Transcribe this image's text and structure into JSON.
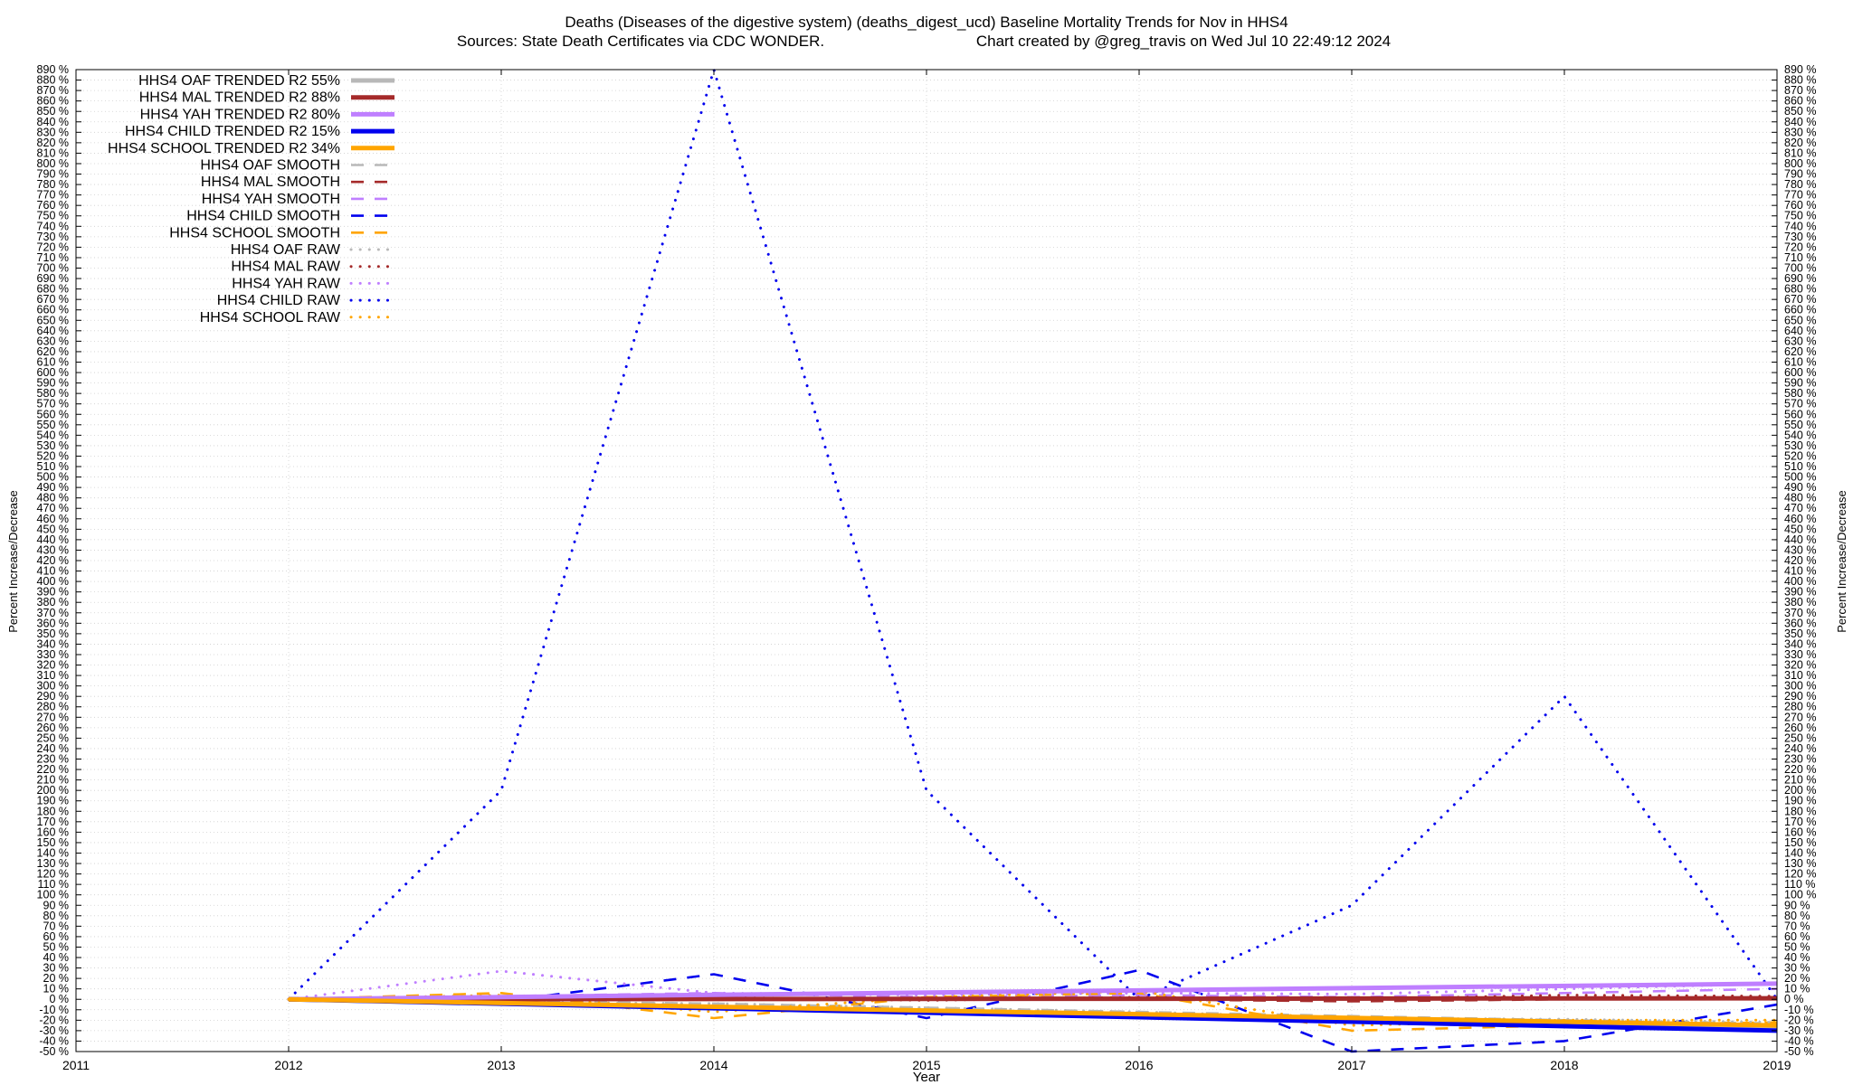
{
  "chart_data": {
    "type": "line",
    "title_line1": "Deaths (Diseases of the digestive system) (deaths_digest_ucd)  Baseline Mortality Trends for Nov in HHS4",
    "title_line2_left": "Sources: State Death Certificates via CDC WONDER.",
    "title_line2_right": "Chart created by @greg_travis on Wed Jul 10 22:49:12 2024",
    "xlabel": "Year",
    "ylabel": "Percent Increase/Decrease",
    "xlim": [
      2011,
      2019
    ],
    "ylim": [
      -50,
      890
    ],
    "x_ticks": [
      2011,
      2012,
      2013,
      2014,
      2015,
      2016,
      2017,
      2018,
      2019
    ],
    "y_tick_step": 10,
    "y_tick_suffix": " %",
    "grid": true,
    "legend_position": "top-left",
    "colors": {
      "oaf": "#b8b8b8",
      "mal": "#a52a2a",
      "yah": "#bf7fff",
      "child": "#0000ee",
      "school": "#ffa500"
    },
    "series": [
      {
        "name": "HHS4 OAF TRENDED R2  55%",
        "key": "oaf",
        "style": "trend",
        "x": [
          2012,
          2019
        ],
        "y": [
          0,
          -28
        ]
      },
      {
        "name": "HHS4 MAL TRENDED R2  88%",
        "key": "mal",
        "style": "trend",
        "x": [
          2012,
          2019
        ],
        "y": [
          0,
          1
        ]
      },
      {
        "name": "HHS4 YAH TRENDED R2  80%",
        "key": "yah",
        "style": "trend",
        "x": [
          2012,
          2019
        ],
        "y": [
          0,
          15
        ]
      },
      {
        "name": "HHS4 CHILD TRENDED R2  15%",
        "key": "child",
        "style": "trend",
        "x": [
          2012,
          2019
        ],
        "y": [
          0,
          -30
        ]
      },
      {
        "name": "HHS4 SCHOOL TRENDED R2  34%",
        "key": "school",
        "style": "trend",
        "x": [
          2012,
          2019
        ],
        "y": [
          0,
          -25
        ]
      },
      {
        "name": "HHS4 OAF SMOOTH",
        "key": "oaf",
        "style": "smooth",
        "x": [
          2012,
          2013,
          2014,
          2015,
          2016,
          2017,
          2018,
          2019
        ],
        "y": [
          0,
          -2,
          -4,
          -8,
          -12,
          -16,
          -20,
          -23
        ]
      },
      {
        "name": "HHS4 MAL SMOOTH",
        "key": "mal",
        "style": "smooth",
        "x": [
          2012,
          2013,
          2014,
          2015,
          2016,
          2017,
          2018,
          2019
        ],
        "y": [
          0,
          2,
          1,
          0,
          0,
          -2,
          0,
          2
        ]
      },
      {
        "name": "HHS4 YAH SMOOTH",
        "key": "yah",
        "style": "smooth",
        "x": [
          2012,
          2013,
          2014,
          2015,
          2016,
          2017,
          2018,
          2019
        ],
        "y": [
          0,
          3,
          6,
          2,
          4,
          2,
          6,
          10
        ]
      },
      {
        "name": "HHS4 CHILD SMOOTH",
        "key": "child",
        "style": "smooth",
        "x": [
          2012,
          2013,
          2014,
          2015,
          2016,
          2017,
          2018,
          2019
        ],
        "y": [
          0,
          -2,
          24,
          -18,
          28,
          -50,
          -40,
          -5
        ]
      },
      {
        "name": "HHS4 SCHOOL SMOOTH",
        "key": "school",
        "style": "smooth",
        "x": [
          2012,
          2013,
          2014,
          2015,
          2016,
          2017,
          2018,
          2019
        ],
        "y": [
          0,
          6,
          -18,
          2,
          6,
          -30,
          -25,
          -22
        ]
      },
      {
        "name": "HHS4 OAF RAW",
        "key": "oaf",
        "style": "raw",
        "x": [
          2012,
          2013,
          2014,
          2015,
          2016,
          2017,
          2018,
          2019
        ],
        "y": [
          0,
          -3,
          -4,
          -8,
          -12,
          -18,
          -19,
          -22
        ]
      },
      {
        "name": "HHS4 MAL RAW",
        "key": "mal",
        "style": "raw",
        "x": [
          2012,
          2013,
          2014,
          2015,
          2016,
          2017,
          2018,
          2019
        ],
        "y": [
          0,
          2,
          2,
          -1,
          2,
          0,
          4,
          3
        ]
      },
      {
        "name": "HHS4 YAH RAW",
        "key": "yah",
        "style": "raw",
        "x": [
          2012,
          2013,
          2014,
          2015,
          2016,
          2017,
          2018,
          2019
        ],
        "y": [
          0,
          27,
          6,
          4,
          6,
          5,
          10,
          15
        ]
      },
      {
        "name": "HHS4 CHILD RAW",
        "key": "child",
        "style": "raw",
        "x": [
          2012,
          2013,
          2014,
          2015,
          2016,
          2017,
          2018,
          2019
        ],
        "y": [
          0,
          200,
          890,
          200,
          0,
          90,
          290,
          0
        ]
      },
      {
        "name": "HHS4 SCHOOL RAW",
        "key": "school",
        "style": "raw",
        "x": [
          2012,
          2013,
          2014,
          2015,
          2016,
          2017,
          2018,
          2019
        ],
        "y": [
          0,
          4,
          -12,
          2,
          8,
          -25,
          -20,
          -20
        ]
      }
    ]
  }
}
